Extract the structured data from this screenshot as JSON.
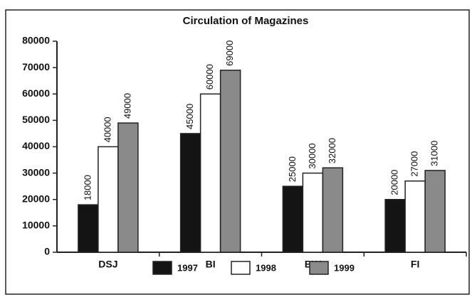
{
  "chart_data": {
    "type": "bar",
    "title": "Circulation of Magazines",
    "categories": [
      "DSJ",
      "BI",
      "BW",
      "FI"
    ],
    "series": [
      {
        "name": "1997",
        "color": "#141414",
        "values": [
          18000,
          45000,
          25000,
          20000
        ]
      },
      {
        "name": "1998",
        "color": "#ffffff",
        "values": [
          40000,
          60000,
          30000,
          27000
        ]
      },
      {
        "name": "1999",
        "color": "#8a8a8a",
        "values": [
          49000,
          69000,
          32000,
          31000
        ]
      }
    ],
    "ylim": [
      0,
      80000
    ],
    "yticks": [
      0,
      10000,
      20000,
      30000,
      40000,
      50000,
      60000,
      70000,
      80000
    ],
    "grid": false,
    "legend": "bottom"
  }
}
